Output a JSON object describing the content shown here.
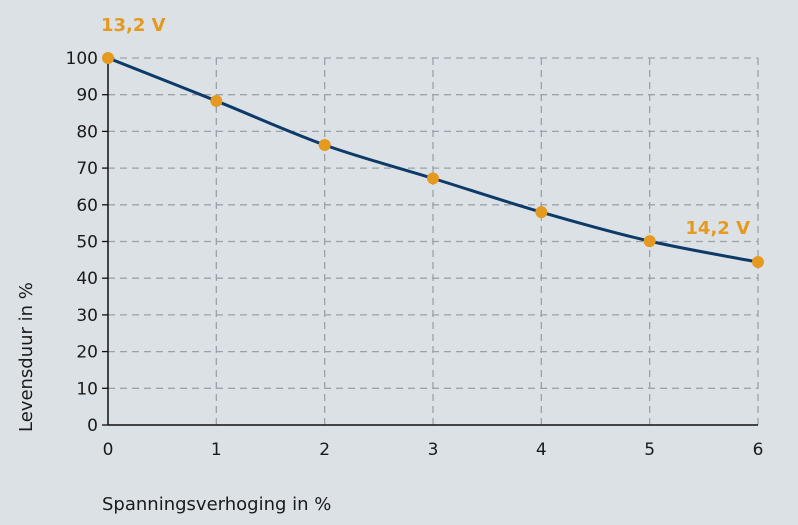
{
  "chart_data": {
    "type": "line",
    "title": "",
    "xlabel": "Spanningsverhoging in %",
    "ylabel": "Levensduur in %",
    "xlim": [
      0,
      6
    ],
    "ylim": [
      0,
      100
    ],
    "x_ticks": [
      0,
      1,
      2,
      3,
      4,
      5,
      6
    ],
    "y_ticks": [
      0,
      10,
      20,
      30,
      40,
      50,
      60,
      70,
      80,
      90,
      100
    ],
    "grid": true,
    "series": [
      {
        "x": [
          0,
          1,
          2,
          3,
          4,
          5,
          6
        ],
        "y": [
          100,
          88.3,
          76.3,
          67.2,
          58,
          50.1,
          44.4
        ]
      }
    ],
    "annotations": [
      {
        "text": "13,2 V",
        "x": 0,
        "y": 100
      },
      {
        "text": "14,2 V",
        "x": 6,
        "y": 44.4
      }
    ],
    "colors": {
      "line": "#0e3a68",
      "marker": "#e59a1f",
      "annotation": "#e59a1f",
      "grid": "#9aa2ab",
      "background": "#dce1e6"
    }
  }
}
